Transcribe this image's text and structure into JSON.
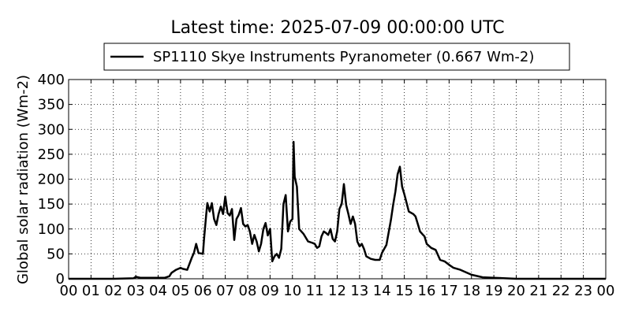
{
  "chart_data": {
    "type": "line",
    "title": "Latest time: 2025-07-09 00:00:00 UTC",
    "xlabel": "",
    "ylabel": "Global solar radiation (Wm-2)",
    "xlim": [
      0,
      24
    ],
    "ylim": [
      0,
      400
    ],
    "x_tick_labels": [
      "00",
      "01",
      "02",
      "03",
      "04",
      "05",
      "06",
      "07",
      "08",
      "09",
      "10",
      "11",
      "12",
      "13",
      "14",
      "15",
      "16",
      "17",
      "18",
      "19",
      "20",
      "21",
      "22",
      "23",
      "00"
    ],
    "y_tick_labels": [
      "0",
      "50",
      "100",
      "150",
      "200",
      "250",
      "300",
      "350",
      "400"
    ],
    "grid": true,
    "legend_position": "top",
    "series": [
      {
        "name": "SP1110 Skye Instruments Pyranometer (0.667 Wm-2)",
        "color": "#000000",
        "x": [
          0,
          1,
          2,
          2.9,
          3.0,
          3.2,
          4.0,
          4.3,
          4.5,
          4.6,
          4.8,
          5.0,
          5.1,
          5.3,
          5.5,
          5.6,
          5.7,
          5.8,
          6.0,
          6.05,
          6.15,
          6.2,
          6.3,
          6.4,
          6.5,
          6.6,
          6.7,
          6.8,
          6.9,
          7.0,
          7.1,
          7.2,
          7.3,
          7.4,
          7.5,
          7.6,
          7.7,
          7.8,
          7.9,
          8.0,
          8.1,
          8.2,
          8.3,
          8.4,
          8.5,
          8.6,
          8.7,
          8.8,
          8.9,
          9.0,
          9.1,
          9.2,
          9.3,
          9.4,
          9.5,
          9.6,
          9.7,
          9.8,
          9.9,
          10.0,
          10.05,
          10.1,
          10.2,
          10.3,
          10.5,
          10.7,
          10.9,
          11.0,
          11.1,
          11.2,
          11.3,
          11.4,
          11.5,
          11.6,
          11.7,
          11.8,
          11.9,
          12.0,
          12.1,
          12.2,
          12.3,
          12.4,
          12.5,
          12.6,
          12.7,
          12.8,
          12.9,
          13.0,
          13.1,
          13.2,
          13.3,
          13.5,
          13.7,
          13.9,
          14.0,
          14.2,
          14.4,
          14.5,
          14.6,
          14.7,
          14.8,
          14.9,
          15.0,
          15.2,
          15.4,
          15.5,
          15.6,
          15.7,
          15.8,
          15.9,
          16.0,
          16.2,
          16.4,
          16.6,
          16.8,
          17.0,
          17.2,
          17.5,
          17.8,
          18.0,
          18.5,
          19.0,
          20,
          21,
          22,
          23,
          24
        ],
        "y": [
          0,
          0,
          0,
          1,
          4,
          2,
          2,
          2,
          5,
          12,
          18,
          22,
          20,
          18,
          42,
          52,
          70,
          52,
          50,
          80,
          130,
          152,
          135,
          152,
          120,
          108,
          130,
          145,
          130,
          165,
          132,
          127,
          140,
          78,
          120,
          128,
          142,
          110,
          105,
          108,
          95,
          70,
          88,
          75,
          55,
          70,
          100,
          112,
          87,
          100,
          35,
          45,
          50,
          42,
          60,
          150,
          168,
          95,
          115,
          120,
          275,
          205,
          185,
          100,
          90,
          75,
          72,
          70,
          62,
          65,
          85,
          95,
          92,
          88,
          100,
          80,
          75,
          95,
          140,
          150,
          190,
          148,
          130,
          110,
          125,
          110,
          75,
          65,
          70,
          60,
          45,
          40,
          38,
          38,
          52,
          68,
          118,
          148,
          175,
          210,
          225,
          185,
          170,
          135,
          130,
          125,
          110,
          95,
          90,
          85,
          70,
          62,
          58,
          38,
          35,
          28,
          22,
          18,
          12,
          8,
          3,
          2,
          0,
          0,
          0,
          0,
          0
        ]
      }
    ]
  }
}
